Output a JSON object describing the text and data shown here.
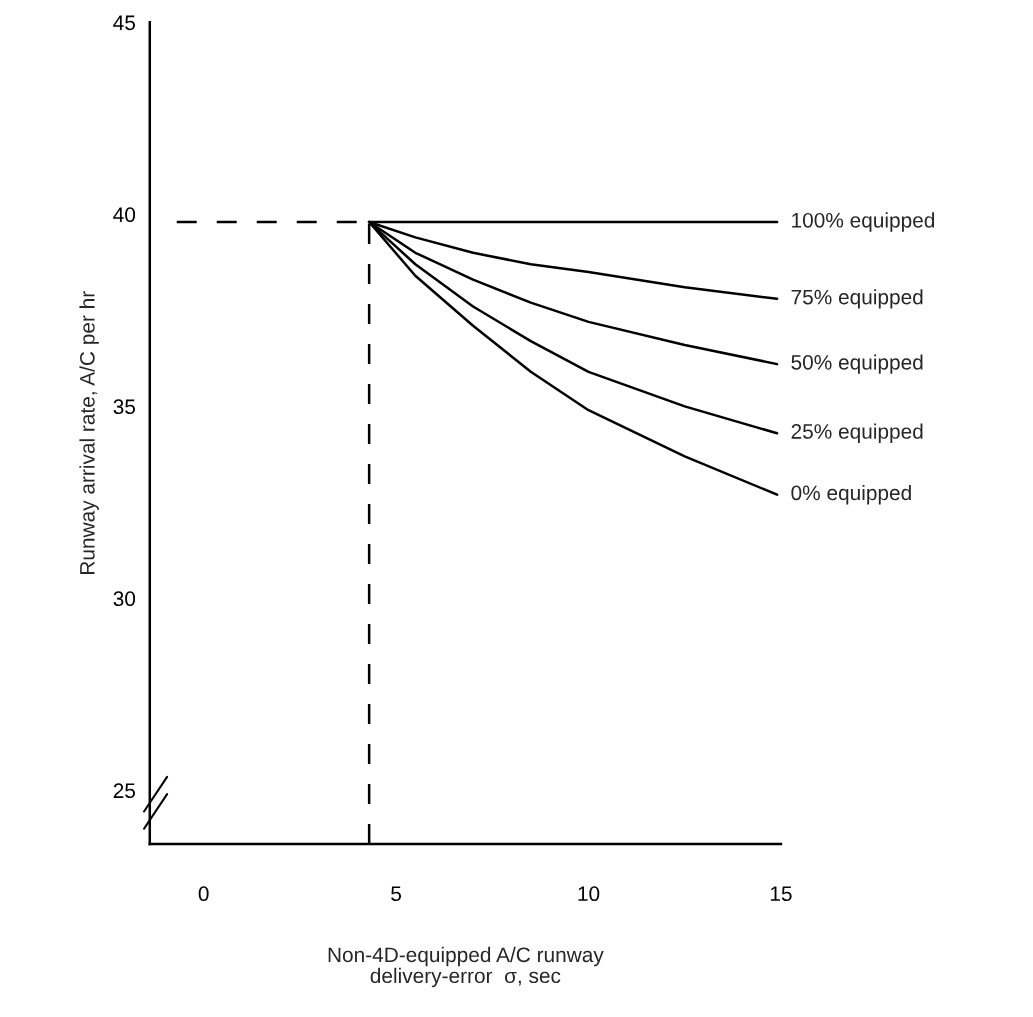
{
  "chart_data": {
    "type": "line",
    "xlabel": "Non-4D-equipped A/C runway\ndelivery-error  σ, sec",
    "ylabel": "Runway arrival rate, A/C per hr",
    "xlim": [
      -1.4,
      15
    ],
    "ylim": [
      23.6,
      45
    ],
    "xticks": [
      0,
      5,
      10,
      15
    ],
    "yticks": [
      25,
      30,
      35,
      40,
      45
    ],
    "grid": false,
    "legend": false,
    "marker": "none",
    "series": [
      {
        "name": "100% equipped",
        "color": "#000000",
        "line_style": "solid",
        "x": [
          4.3,
          7,
          10,
          12.5,
          14.9
        ],
        "values": [
          39.8,
          39.8,
          39.8,
          39.8,
          39.8
        ]
      },
      {
        "name": "75% equipped",
        "color": "#000000",
        "line_style": "solid",
        "x": [
          4.3,
          5.5,
          7,
          8.5,
          10,
          12.5,
          14.9
        ],
        "values": [
          39.8,
          39.4,
          39.0,
          38.7,
          38.5,
          38.1,
          37.8
        ]
      },
      {
        "name": "50% equipped",
        "color": "#000000",
        "line_style": "solid",
        "x": [
          4.3,
          5.5,
          7,
          8.5,
          10,
          12.5,
          14.9
        ],
        "values": [
          39.8,
          39.0,
          38.3,
          37.7,
          37.2,
          36.6,
          36.1
        ]
      },
      {
        "name": "25% equipped",
        "color": "#000000",
        "line_style": "solid",
        "x": [
          4.3,
          5.5,
          7,
          8.5,
          10,
          12.5,
          14.9
        ],
        "values": [
          39.8,
          38.7,
          37.6,
          36.7,
          35.9,
          35.0,
          34.3
        ]
      },
      {
        "name": "0% equipped",
        "color": "#000000",
        "line_style": "solid",
        "x": [
          4.3,
          5.5,
          7,
          8.5,
          10,
          12.5,
          14.9
        ],
        "values": [
          39.8,
          38.4,
          37.1,
          35.9,
          34.9,
          33.7,
          32.7
        ]
      },
      {
        "color": "#000000",
        "line_style": "dashed",
        "x": [
          -0.7,
          4.3
        ],
        "values": [
          39.8,
          39.8
        ]
      },
      {
        "color": "#000000",
        "line_style": "dashed",
        "x": [
          4.3,
          4.3
        ],
        "values": [
          23.6,
          39.8
        ]
      }
    ]
  }
}
